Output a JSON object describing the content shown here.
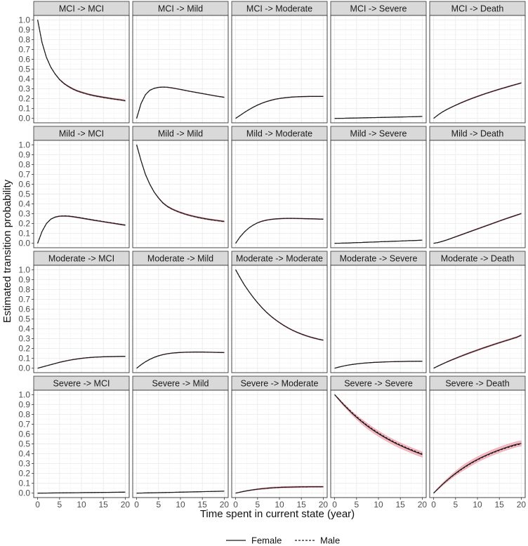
{
  "chart_data": {
    "type": "line",
    "layout": "faceted grid, 4 rows x 5 columns, shared axes",
    "xlabel": "Time spent in current state (year)",
    "ylabel": "Estimated transition probability",
    "xlim": [
      0,
      20
    ],
    "ylim": [
      0,
      1.0
    ],
    "x_ticks": [
      0,
      5,
      10,
      15,
      20
    ],
    "y_ticks": [
      0.0,
      0.1,
      0.2,
      0.3,
      0.4,
      0.5,
      0.6,
      0.7,
      0.8,
      0.9,
      1.0
    ],
    "y_tick_labels": [
      "0.0",
      "0.1",
      "0.2",
      "0.3",
      "0.4",
      "0.5",
      "0.6",
      "0.7",
      "0.8",
      "0.9",
      "1.0"
    ],
    "x_tick_labels": [
      "0",
      "5",
      "10",
      "15",
      "20"
    ],
    "grid": true,
    "legend": {
      "position": "bottom",
      "entries": [
        {
          "name": "Female",
          "linestyle": "solid"
        },
        {
          "name": "Male",
          "linestyle": "dashed"
        }
      ]
    },
    "colors": {
      "line": "#1a1a1a",
      "ribbon": "#f4a6b3",
      "ribbon_edge": "#e88fa0",
      "panel_bg": "#ffffff",
      "grid": "#ebebeb",
      "strip_bg": "#d9d9d9",
      "border": "#333333"
    },
    "x": [
      0,
      1,
      2,
      3,
      4,
      5,
      6,
      7,
      8,
      9,
      10,
      11,
      12,
      13,
      14,
      15,
      16,
      17,
      18,
      19,
      20
    ],
    "panels": [
      {
        "title": "MCI -> MCI",
        "female": [
          1.0,
          0.77,
          0.62,
          0.52,
          0.45,
          0.395,
          0.355,
          0.325,
          0.3,
          0.28,
          0.265,
          0.252,
          0.24,
          0.23,
          0.222,
          0.214,
          0.207,
          0.2,
          0.194,
          0.188,
          0.18
        ],
        "male": [
          1.0,
          0.77,
          0.62,
          0.52,
          0.45,
          0.393,
          0.353,
          0.323,
          0.298,
          0.278,
          0.263,
          0.25,
          0.238,
          0.228,
          0.22,
          0.212,
          0.205,
          0.198,
          0.192,
          0.186,
          0.178
        ],
        "band": 0.008
      },
      {
        "title": "MCI -> Mild",
        "female": [
          0.0,
          0.15,
          0.24,
          0.285,
          0.305,
          0.315,
          0.318,
          0.316,
          0.31,
          0.302,
          0.294,
          0.285,
          0.276,
          0.268,
          0.26,
          0.252,
          0.244,
          0.236,
          0.228,
          0.221,
          0.214
        ],
        "male": [
          0.0,
          0.15,
          0.24,
          0.285,
          0.305,
          0.315,
          0.318,
          0.316,
          0.31,
          0.302,
          0.294,
          0.285,
          0.276,
          0.268,
          0.26,
          0.252,
          0.244,
          0.236,
          0.228,
          0.221,
          0.214
        ],
        "band": 0.004
      },
      {
        "title": "MCI -> Moderate",
        "female": [
          0.0,
          0.03,
          0.06,
          0.088,
          0.113,
          0.135,
          0.154,
          0.17,
          0.183,
          0.194,
          0.202,
          0.208,
          0.213,
          0.217,
          0.219,
          0.221,
          0.222,
          0.223,
          0.223,
          0.223,
          0.223
        ],
        "male": [
          0.0,
          0.03,
          0.06,
          0.088,
          0.113,
          0.135,
          0.154,
          0.17,
          0.183,
          0.194,
          0.202,
          0.208,
          0.213,
          0.217,
          0.219,
          0.221,
          0.222,
          0.223,
          0.223,
          0.223,
          0.223
        ],
        "band": 0.004
      },
      {
        "title": "MCI -> Severe",
        "female": [
          0.0,
          0.0005,
          0.001,
          0.002,
          0.003,
          0.004,
          0.005,
          0.006,
          0.007,
          0.008,
          0.009,
          0.01,
          0.011,
          0.012,
          0.013,
          0.014,
          0.015,
          0.016,
          0.017,
          0.018,
          0.02
        ],
        "male": [
          0.0,
          0.0005,
          0.001,
          0.002,
          0.003,
          0.004,
          0.005,
          0.006,
          0.007,
          0.008,
          0.009,
          0.01,
          0.011,
          0.012,
          0.013,
          0.014,
          0.015,
          0.016,
          0.017,
          0.018,
          0.02
        ],
        "band": 0.002
      },
      {
        "title": "MCI -> Death",
        "female": [
          0.0,
          0.035,
          0.065,
          0.09,
          0.112,
          0.133,
          0.153,
          0.172,
          0.19,
          0.207,
          0.223,
          0.239,
          0.254,
          0.268,
          0.282,
          0.296,
          0.309,
          0.322,
          0.335,
          0.347,
          0.36
        ],
        "male": [
          0.0,
          0.035,
          0.065,
          0.09,
          0.112,
          0.133,
          0.153,
          0.172,
          0.19,
          0.207,
          0.223,
          0.239,
          0.254,
          0.268,
          0.282,
          0.296,
          0.309,
          0.322,
          0.335,
          0.347,
          0.36
        ],
        "band": 0.006
      },
      {
        "title": "Mild -> MCI",
        "female": [
          0.0,
          0.12,
          0.2,
          0.245,
          0.266,
          0.275,
          0.277,
          0.275,
          0.27,
          0.263,
          0.256,
          0.248,
          0.241,
          0.233,
          0.226,
          0.219,
          0.212,
          0.205,
          0.198,
          0.191,
          0.184
        ],
        "male": [
          0.0,
          0.12,
          0.2,
          0.245,
          0.266,
          0.276,
          0.279,
          0.277,
          0.272,
          0.265,
          0.258,
          0.25,
          0.243,
          0.235,
          0.228,
          0.221,
          0.214,
          0.207,
          0.2,
          0.193,
          0.186
        ],
        "band": 0.006
      },
      {
        "title": "Mild -> Mild",
        "female": [
          1.0,
          0.84,
          0.7,
          0.6,
          0.52,
          0.46,
          0.41,
          0.375,
          0.35,
          0.33,
          0.313,
          0.298,
          0.285,
          0.274,
          0.264,
          0.255,
          0.247,
          0.24,
          0.234,
          0.228,
          0.222
        ],
        "male": [
          1.0,
          0.84,
          0.7,
          0.6,
          0.52,
          0.458,
          0.408,
          0.373,
          0.348,
          0.328,
          0.311,
          0.296,
          0.283,
          0.272,
          0.262,
          0.253,
          0.245,
          0.238,
          0.232,
          0.226,
          0.22
        ],
        "band": 0.008
      },
      {
        "title": "Mild -> Moderate",
        "female": [
          0.0,
          0.065,
          0.115,
          0.155,
          0.185,
          0.208,
          0.224,
          0.235,
          0.242,
          0.247,
          0.25,
          0.252,
          0.253,
          0.253,
          0.252,
          0.251,
          0.25,
          0.249,
          0.248,
          0.246,
          0.245
        ],
        "male": [
          0.0,
          0.065,
          0.115,
          0.155,
          0.185,
          0.208,
          0.224,
          0.235,
          0.242,
          0.247,
          0.25,
          0.252,
          0.253,
          0.253,
          0.252,
          0.251,
          0.25,
          0.249,
          0.248,
          0.246,
          0.245
        ],
        "band": 0.005
      },
      {
        "title": "Mild -> Severe",
        "female": [
          0.0,
          0.001,
          0.002,
          0.003,
          0.005,
          0.007,
          0.008,
          0.01,
          0.012,
          0.013,
          0.015,
          0.017,
          0.018,
          0.02,
          0.022,
          0.023,
          0.025,
          0.027,
          0.028,
          0.03,
          0.032
        ],
        "male": [
          0.0,
          0.001,
          0.002,
          0.003,
          0.005,
          0.007,
          0.008,
          0.01,
          0.012,
          0.013,
          0.015,
          0.017,
          0.018,
          0.02,
          0.022,
          0.023,
          0.025,
          0.027,
          0.028,
          0.03,
          0.032
        ],
        "band": 0.002
      },
      {
        "title": "Mild -> Death",
        "female": [
          0.0,
          0.008,
          0.02,
          0.034,
          0.05,
          0.066,
          0.082,
          0.098,
          0.114,
          0.13,
          0.146,
          0.162,
          0.178,
          0.194,
          0.21,
          0.226,
          0.242,
          0.257,
          0.272,
          0.287,
          0.302
        ],
        "male": [
          0.0,
          0.008,
          0.02,
          0.034,
          0.05,
          0.066,
          0.082,
          0.098,
          0.114,
          0.13,
          0.146,
          0.162,
          0.178,
          0.194,
          0.21,
          0.226,
          0.242,
          0.257,
          0.272,
          0.287,
          0.302
        ],
        "band": 0.006
      },
      {
        "title": "Moderate -> MCI",
        "female": [
          0.0,
          0.012,
          0.024,
          0.036,
          0.048,
          0.06,
          0.07,
          0.079,
          0.087,
          0.094,
          0.1,
          0.105,
          0.109,
          0.112,
          0.114,
          0.116,
          0.117,
          0.118,
          0.119,
          0.12,
          0.12
        ],
        "male": [
          0.0,
          0.012,
          0.024,
          0.036,
          0.048,
          0.06,
          0.07,
          0.079,
          0.087,
          0.094,
          0.1,
          0.105,
          0.109,
          0.112,
          0.114,
          0.116,
          0.117,
          0.118,
          0.119,
          0.12,
          0.12
        ],
        "band": 0.004
      },
      {
        "title": "Moderate -> Mild",
        "female": [
          0.0,
          0.035,
          0.065,
          0.09,
          0.11,
          0.126,
          0.138,
          0.147,
          0.153,
          0.157,
          0.16,
          0.162,
          0.163,
          0.164,
          0.164,
          0.164,
          0.163,
          0.162,
          0.161,
          0.16,
          0.159
        ],
        "male": [
          0.0,
          0.035,
          0.065,
          0.09,
          0.11,
          0.126,
          0.138,
          0.147,
          0.153,
          0.157,
          0.16,
          0.162,
          0.163,
          0.164,
          0.164,
          0.164,
          0.163,
          0.162,
          0.161,
          0.16,
          0.159
        ],
        "band": 0.004
      },
      {
        "title": "Moderate -> Moderate",
        "female": [
          1.0,
          0.92,
          0.845,
          0.78,
          0.72,
          0.665,
          0.615,
          0.57,
          0.53,
          0.495,
          0.463,
          0.434,
          0.408,
          0.385,
          0.365,
          0.347,
          0.331,
          0.317,
          0.305,
          0.294,
          0.285
        ],
        "male": [
          1.0,
          0.92,
          0.845,
          0.78,
          0.72,
          0.665,
          0.615,
          0.57,
          0.53,
          0.495,
          0.463,
          0.434,
          0.408,
          0.385,
          0.365,
          0.347,
          0.331,
          0.317,
          0.305,
          0.294,
          0.285
        ],
        "band": 0.006
      },
      {
        "title": "Moderate -> Severe",
        "female": [
          0.0,
          0.012,
          0.022,
          0.031,
          0.038,
          0.044,
          0.049,
          0.053,
          0.056,
          0.059,
          0.061,
          0.063,
          0.065,
          0.066,
          0.067,
          0.068,
          0.069,
          0.07,
          0.07,
          0.071,
          0.071
        ],
        "male": [
          0.0,
          0.012,
          0.022,
          0.031,
          0.038,
          0.044,
          0.049,
          0.053,
          0.056,
          0.059,
          0.061,
          0.063,
          0.065,
          0.066,
          0.067,
          0.068,
          0.069,
          0.07,
          0.07,
          0.071,
          0.071
        ],
        "band": 0.003
      },
      {
        "title": "Moderate -> Death",
        "female": [
          0.0,
          0.022,
          0.043,
          0.063,
          0.082,
          0.1,
          0.118,
          0.135,
          0.152,
          0.168,
          0.184,
          0.2,
          0.215,
          0.23,
          0.245,
          0.259,
          0.273,
          0.287,
          0.301,
          0.315,
          0.335
        ],
        "male": [
          0.0,
          0.022,
          0.043,
          0.063,
          0.082,
          0.1,
          0.118,
          0.135,
          0.152,
          0.168,
          0.184,
          0.2,
          0.215,
          0.23,
          0.245,
          0.259,
          0.273,
          0.287,
          0.301,
          0.315,
          0.335
        ],
        "band": 0.008
      },
      {
        "title": "Severe -> MCI",
        "female": [
          0.0,
          0.0005,
          0.001,
          0.0015,
          0.002,
          0.0025,
          0.003,
          0.0035,
          0.004,
          0.0045,
          0.005,
          0.0055,
          0.006,
          0.0065,
          0.007,
          0.0075,
          0.008,
          0.0085,
          0.009,
          0.0095,
          0.01
        ],
        "male": [
          0.0,
          0.0005,
          0.001,
          0.0015,
          0.002,
          0.0025,
          0.003,
          0.0035,
          0.004,
          0.0045,
          0.005,
          0.0055,
          0.006,
          0.0065,
          0.007,
          0.0075,
          0.008,
          0.0085,
          0.009,
          0.0095,
          0.01
        ],
        "band": 0.002
      },
      {
        "title": "Severe -> Mild",
        "female": [
          0.0,
          0.001,
          0.002,
          0.003,
          0.004,
          0.005,
          0.006,
          0.007,
          0.008,
          0.009,
          0.01,
          0.011,
          0.012,
          0.013,
          0.014,
          0.015,
          0.016,
          0.017,
          0.018,
          0.019,
          0.02
        ],
        "male": [
          0.0,
          0.001,
          0.002,
          0.003,
          0.004,
          0.005,
          0.006,
          0.007,
          0.008,
          0.009,
          0.01,
          0.011,
          0.012,
          0.013,
          0.014,
          0.015,
          0.016,
          0.017,
          0.018,
          0.019,
          0.02
        ],
        "band": 0.002
      },
      {
        "title": "Severe -> Moderate",
        "female": [
          0.0,
          0.01,
          0.019,
          0.027,
          0.034,
          0.04,
          0.045,
          0.049,
          0.053,
          0.056,
          0.058,
          0.06,
          0.061,
          0.062,
          0.063,
          0.064,
          0.064,
          0.065,
          0.065,
          0.065,
          0.065
        ],
        "male": [
          0.0,
          0.01,
          0.019,
          0.027,
          0.034,
          0.04,
          0.045,
          0.049,
          0.053,
          0.056,
          0.058,
          0.06,
          0.061,
          0.062,
          0.063,
          0.064,
          0.064,
          0.065,
          0.065,
          0.065,
          0.065
        ],
        "band": 0.008
      },
      {
        "title": "Severe -> Severe",
        "female": [
          1.0,
          0.95,
          0.9,
          0.855,
          0.81,
          0.77,
          0.732,
          0.697,
          0.664,
          0.633,
          0.604,
          0.577,
          0.551,
          0.527,
          0.504,
          0.483,
          0.463,
          0.444,
          0.426,
          0.409,
          0.392
        ],
        "male": [
          1.0,
          0.952,
          0.905,
          0.86,
          0.817,
          0.777,
          0.739,
          0.704,
          0.671,
          0.64,
          0.611,
          0.584,
          0.558,
          0.534,
          0.511,
          0.49,
          0.47,
          0.451,
          0.433,
          0.416,
          0.4
        ],
        "band": 0.028
      },
      {
        "title": "Severe -> Death",
        "female": [
          0.0,
          0.045,
          0.088,
          0.128,
          0.166,
          0.201,
          0.234,
          0.264,
          0.292,
          0.318,
          0.342,
          0.364,
          0.385,
          0.404,
          0.422,
          0.439,
          0.455,
          0.47,
          0.484,
          0.497,
          0.505
        ],
        "male": [
          0.0,
          0.045,
          0.087,
          0.126,
          0.163,
          0.197,
          0.229,
          0.259,
          0.287,
          0.313,
          0.337,
          0.359,
          0.38,
          0.399,
          0.417,
          0.434,
          0.45,
          0.464,
          0.477,
          0.489,
          0.5
        ],
        "band": 0.028
      }
    ]
  }
}
